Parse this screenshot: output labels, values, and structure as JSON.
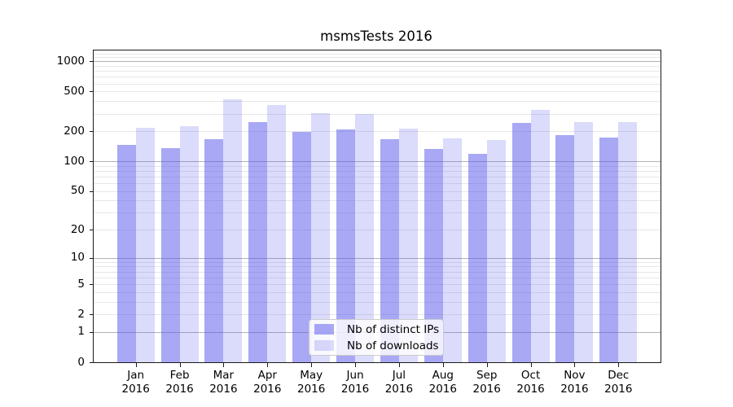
{
  "title": "msmsTests 2016",
  "chart_data": {
    "type": "bar",
    "title": "msmsTests 2016",
    "categories": [
      "Jan",
      "Feb",
      "Mar",
      "Apr",
      "May",
      "Jun",
      "Jul",
      "Aug",
      "Sep",
      "Oct",
      "Nov",
      "Dec"
    ],
    "year_label": "2016",
    "series": [
      {
        "name": "Nb of distinct IPs",
        "base_color": "#5555eb",
        "alpha": 0.51,
        "solid_color": "#a8a8f0",
        "values": [
          146,
          136,
          166,
          247,
          196,
          208,
          166,
          133,
          118,
          244,
          183,
          174
        ]
      },
      {
        "name": "Nb of downloads",
        "base_color": "#5555eb",
        "alpha": 0.21,
        "solid_color": "#dcdcf8",
        "values": [
          218,
          223,
          420,
          364,
          303,
          300,
          212,
          168,
          163,
          327,
          245,
          246
        ]
      }
    ],
    "yscale": "log1p",
    "ylim": [
      0,
      1280
    ],
    "yticks": [
      {
        "value": 1000,
        "label": "1000"
      },
      {
        "value": 500,
        "label": "500"
      },
      {
        "value": 200,
        "label": "200"
      },
      {
        "value": 100,
        "label": "100"
      },
      {
        "value": 50,
        "label": "50"
      },
      {
        "value": 20,
        "label": "20"
      },
      {
        "value": 10,
        "label": "10"
      },
      {
        "value": 5,
        "label": "5"
      },
      {
        "value": 2,
        "label": "2"
      },
      {
        "value": 1,
        "label": "1"
      },
      {
        "value": 0,
        "label": "0"
      }
    ],
    "grid": {
      "major_values": [
        1,
        10,
        100,
        1000
      ],
      "minor_values": [
        2,
        3,
        4,
        5,
        6,
        7,
        8,
        9,
        20,
        30,
        40,
        50,
        60,
        70,
        80,
        90,
        200,
        300,
        400,
        500,
        600,
        700,
        800,
        900,
        1100,
        1200
      ],
      "major_color": "#b3b3b3",
      "minor_color": "#e7e7e7"
    },
    "legend": {
      "position": "lower center"
    },
    "xlabel": "",
    "ylabel": ""
  },
  "colors": {
    "spine": "#1a1a1a",
    "text": "#000000",
    "background": "#ffffff"
  }
}
